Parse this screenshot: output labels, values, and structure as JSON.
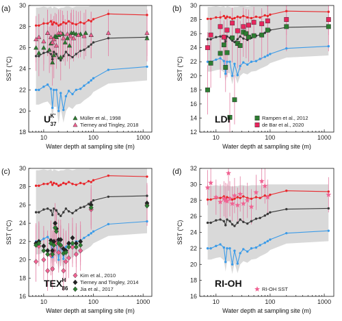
{
  "colors": {
    "red": "#e8262b",
    "black": "#3a3a3a",
    "blue": "#3b9be8",
    "band": "#d9d9d9",
    "green": "#2e7d32",
    "pink": "#f06292",
    "darkgreen": "#1b5e20",
    "errorbar": "#e27aa0"
  },
  "chart_data": [
    {
      "type": "scatter",
      "panel_label": "(a)",
      "proxy": "U",
      "proxy_sup": "K'",
      "proxy_sub": "37",
      "xlabel": "Water depth at sampling site (m)",
      "ylabel": "SST (°C)",
      "xscale": "log",
      "xlim": [
        5,
        1500
      ],
      "ylim": [
        18,
        30
      ],
      "yticks": [
        18,
        20,
        22,
        24,
        26,
        28,
        30
      ],
      "xticks": [
        10,
        100,
        1000
      ],
      "xtick_labels": [
        "10",
        "100",
        "1000"
      ],
      "legend_position": "bottom-right",
      "reference_lines": {
        "x": [
          7,
          8,
          10,
          12,
          14,
          15,
          16,
          18,
          20,
          22,
          25,
          28,
          32,
          38,
          45,
          55,
          65,
          80,
          90,
          100,
          200,
          1200
        ],
        "max": [
          28.1,
          28.1,
          28.3,
          28.3,
          28.5,
          28.2,
          28.4,
          28.3,
          28.1,
          28.2,
          28.4,
          28.3,
          28.5,
          28.3,
          28.2,
          28.4,
          28.3,
          28.6,
          28.5,
          28.7,
          29.2,
          29.1
        ],
        "mean": [
          25.2,
          25.2,
          25.5,
          25.6,
          25.4,
          24.9,
          25.6,
          25.4,
          25.0,
          24.8,
          25.2,
          25.6,
          25.3,
          25.1,
          25.4,
          25.7,
          25.8,
          26.1,
          26.3,
          26.5,
          26.9,
          27.0
        ],
        "min": [
          22.0,
          22.0,
          22.3,
          22.5,
          22.1,
          20.3,
          22.0,
          22.0,
          20.0,
          21.7,
          20.1,
          21.4,
          21.9,
          21.6,
          22.0,
          22.1,
          22.4,
          22.7,
          22.9,
          23.1,
          23.9,
          24.2
        ],
        "band_upper": [
          29.8,
          29.8,
          29.9,
          29.8,
          29.9,
          29.7,
          29.9,
          29.8,
          29.7,
          29.8,
          29.8,
          29.9,
          29.9,
          29.8,
          29.9,
          29.9,
          29.9,
          29.9,
          30.0,
          30.0,
          30.0,
          30.0
        ],
        "band_lower": [
          20.6,
          20.6,
          20.8,
          20.9,
          20.5,
          19.1,
          20.4,
          20.4,
          18.8,
          20.2,
          18.9,
          20.0,
          20.4,
          20.2,
          20.6,
          20.7,
          21.0,
          21.3,
          21.5,
          21.8,
          22.6,
          22.9
        ]
      },
      "series": [
        {
          "name": "Müller et al., 1998",
          "marker": "triangle",
          "color": "#2e7d32",
          "x": [
            7,
            8,
            10,
            12,
            13,
            14,
            15,
            16,
            17,
            18,
            20,
            22,
            24,
            27,
            30,
            33,
            36,
            40,
            45,
            55,
            70,
            90,
            1200
          ],
          "y": [
            26.0,
            25.5,
            26.0,
            27.4,
            25.8,
            26.4,
            24.6,
            25.3,
            27.1,
            27.0,
            27.2,
            25.1,
            27.3,
            26.5,
            26.9,
            26.2,
            27.4,
            27.4,
            27.3,
            27.3,
            27.4,
            27.2,
            26.9
          ]
        },
        {
          "name": "Tierney and Tingley, 2018",
          "marker": "triangle",
          "color": "#f06292",
          "x": [
            7,
            8,
            10,
            12,
            14,
            15,
            16,
            18,
            20,
            22,
            25,
            30,
            35,
            40,
            50,
            65,
            90,
            200,
            1200
          ],
          "y": [
            26.8,
            27.0,
            26.6,
            27.4,
            27.0,
            26.5,
            26.8,
            26.2,
            27.4,
            27.4,
            26.9,
            27.3,
            27.1,
            26.9,
            27.2,
            27.1,
            27.2,
            27.4,
            27.4
          ]
        }
      ]
    },
    {
      "type": "scatter",
      "panel_label": "(b)",
      "proxy": "LDI",
      "xlabel": "Water depth at sampling site (m)",
      "ylabel": "SST (°C)",
      "xscale": "log",
      "xlim": [
        5,
        1500
      ],
      "ylim": [
        12,
        30
      ],
      "yticks": [
        12,
        14,
        16,
        18,
        20,
        22,
        24,
        26,
        28,
        30
      ],
      "xticks": [
        10,
        100,
        1000
      ],
      "xtick_labels": [
        "10",
        "100",
        "1000"
      ],
      "legend_position": "bottom-right",
      "series": [
        {
          "name": "Rampen et al., 2012",
          "marker": "square",
          "color": "#2e7d32",
          "x": [
            7,
            8,
            12,
            14,
            15,
            16,
            18,
            20,
            22,
            25,
            28,
            32,
            36,
            40,
            50,
            70,
            90,
            200,
            1200
          ],
          "y": [
            18.0,
            21.8,
            23.2,
            24.4,
            21.2,
            23.3,
            14.1,
            25.4,
            16.6,
            24.6,
            24.3,
            26.2,
            26.0,
            25.5,
            25.7,
            25.8,
            26.5,
            27.0,
            27.0
          ]
        },
        {
          "name": "de Bar et al., 2020",
          "marker": "square",
          "color": "#e8265e",
          "x": [
            7,
            8,
            12,
            14,
            16,
            20,
            25,
            32,
            40,
            50,
            70,
            90,
            200,
            1200
          ],
          "y": [
            24.0,
            25.8,
            27.0,
            25.5,
            26.5,
            27.5,
            26.4,
            27.0,
            27.2,
            27.6,
            27.4,
            27.8,
            28.0,
            28.0
          ]
        }
      ]
    },
    {
      "type": "scatter",
      "panel_label": "(c)",
      "proxy": "TEX",
      "proxy_sup": "H",
      "proxy_sub": "86",
      "xlabel": "Water depth at sampling site (m)",
      "ylabel": "SST (°C)",
      "xscale": "log",
      "xlim": [
        5,
        1500
      ],
      "ylim": [
        16,
        30
      ],
      "yticks": [
        16,
        18,
        20,
        22,
        24,
        26,
        28,
        30
      ],
      "xticks": [
        10,
        100,
        1000
      ],
      "xtick_labels": [
        "10",
        "100",
        "1000"
      ],
      "legend_position": "bottom-right",
      "series": [
        {
          "name": "Kim et al., 2010",
          "marker": "diamond",
          "color": "#f06292",
          "x": [
            7,
            8,
            10,
            12,
            14,
            15,
            16,
            17,
            18,
            20,
            22,
            25,
            28,
            32,
            38,
            45,
            55,
            90,
            1200
          ],
          "y": [
            19.8,
            21.5,
            20.0,
            18.8,
            20.5,
            19.0,
            21.0,
            22.0,
            21.8,
            20.8,
            21.5,
            18.8,
            19.8,
            20.2,
            21.4,
            20.6,
            21.0,
            25.5,
            26.0
          ]
        },
        {
          "name": "Tierney and Tingley, 2014",
          "marker": "diamond",
          "color": "#222222",
          "x": [
            7,
            8,
            10,
            12,
            14,
            15,
            16,
            17,
            18,
            20,
            22,
            25,
            28,
            32,
            38,
            45,
            55,
            90,
            1200
          ],
          "y": [
            21.8,
            22.0,
            21.5,
            21.0,
            22.1,
            21.0,
            22.0,
            24.0,
            23.4,
            22.2,
            22.2,
            21.2,
            21.0,
            21.8,
            22.4,
            21.8,
            22.0,
            26.0,
            26.2
          ]
        },
        {
          "name": "Jia et al., 2017",
          "marker": "diamond",
          "color": "#2e7d32",
          "x": [
            7,
            8,
            10,
            12,
            14,
            15,
            16,
            17,
            18,
            20,
            22,
            25,
            28,
            32,
            38,
            45,
            55,
            90,
            1200
          ],
          "y": [
            21.6,
            21.8,
            21.0,
            20.6,
            21.8,
            20.6,
            21.6,
            23.5,
            23.1,
            21.8,
            21.6,
            20.7,
            20.8,
            21.4,
            21.8,
            21.4,
            21.6,
            25.7,
            25.9
          ]
        }
      ]
    },
    {
      "type": "scatter",
      "panel_label": "(d)",
      "proxy": "RI-OH",
      "xlabel": "Water depth at sampling site (m)",
      "ylabel": "SST (°C)",
      "xscale": "log",
      "xlim": [
        5,
        1500
      ],
      "ylim": [
        16,
        32
      ],
      "yticks": [
        16,
        18,
        20,
        22,
        24,
        26,
        28,
        30,
        32
      ],
      "xticks": [
        10,
        100,
        1000
      ],
      "xtick_labels": [
        "10",
        "100",
        "1000"
      ],
      "legend_position": "bottom-right",
      "series": [
        {
          "name": "RI-OH SST",
          "marker": "star",
          "color": "#f06292",
          "x": [
            7,
            8,
            10,
            12,
            14,
            15,
            16,
            17,
            18,
            20,
            22,
            25,
            28,
            32,
            38,
            45,
            55,
            70,
            80,
            90,
            1200
          ],
          "y": [
            29.6,
            30.2,
            28.4,
            27.8,
            28.2,
            28.0,
            27.9,
            31.4,
            28.2,
            27.6,
            28.6,
            27.4,
            28.8,
            27.6,
            28.0,
            27.2,
            29.0,
            30.4,
            29.8,
            28.4,
            28.7
          ]
        }
      ]
    }
  ]
}
